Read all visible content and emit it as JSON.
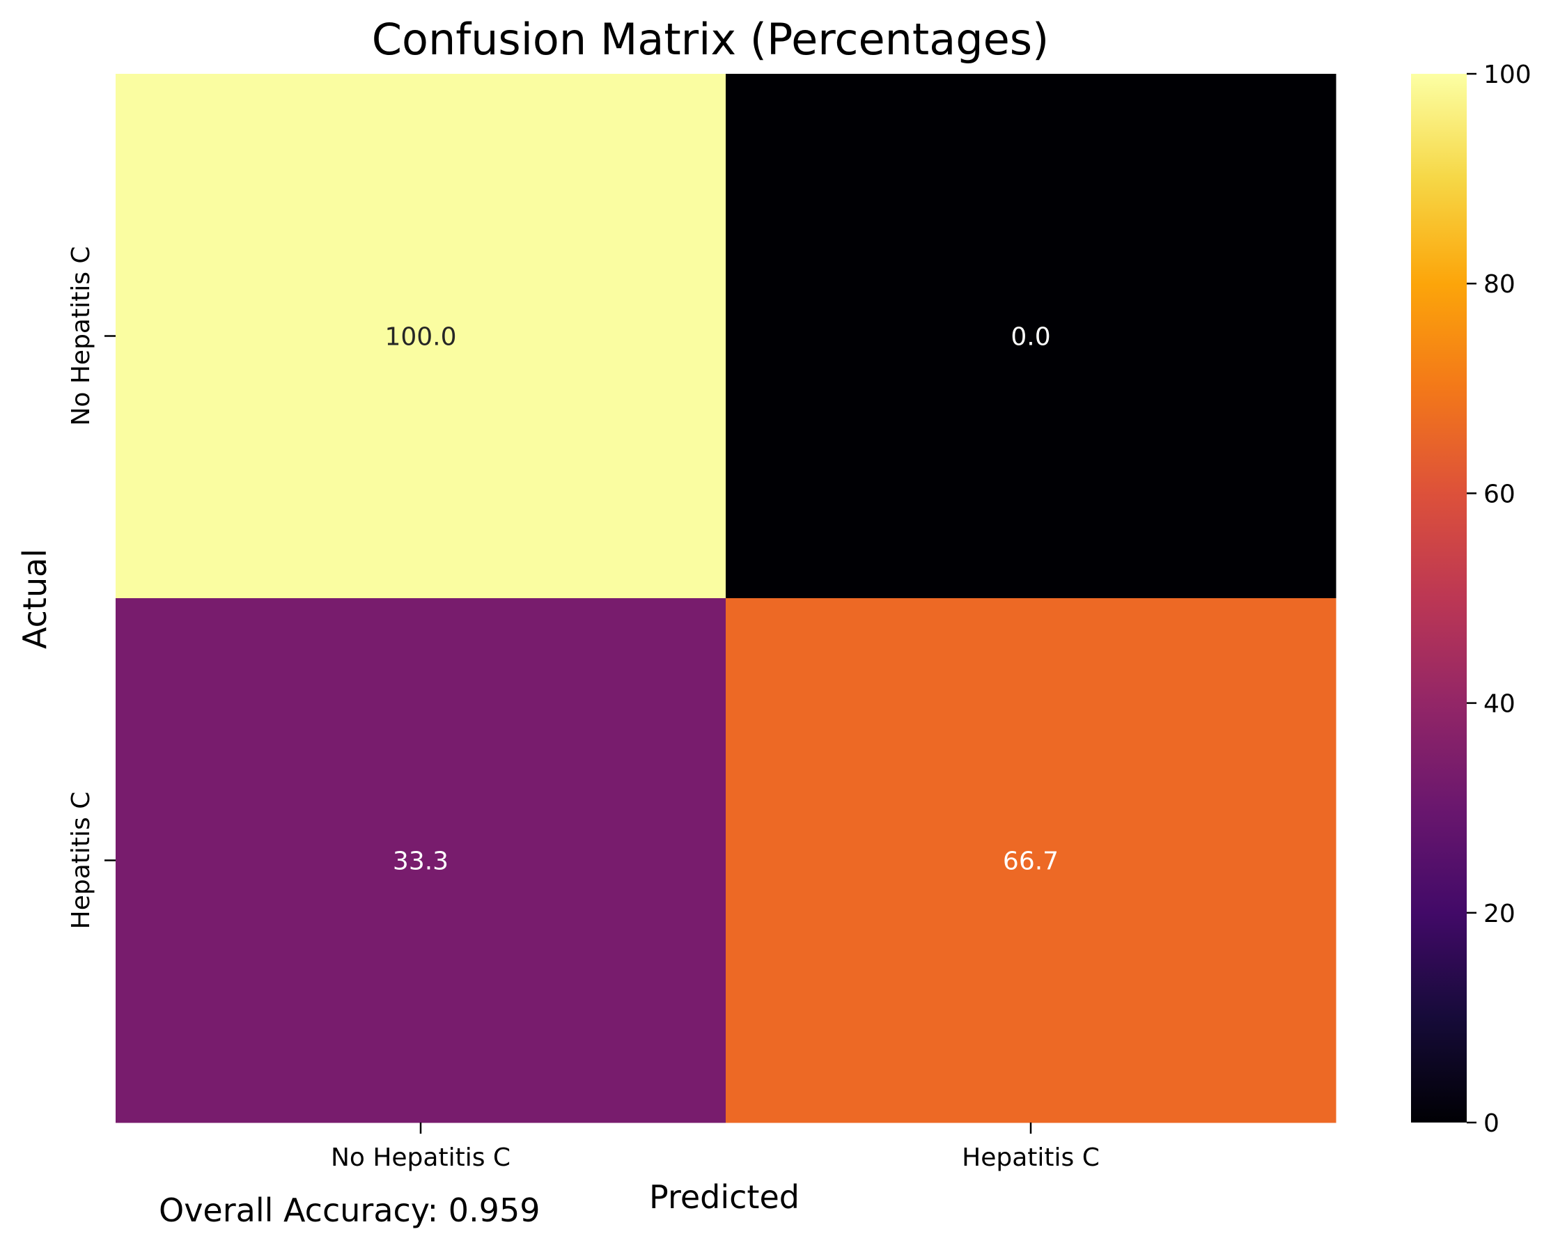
{
  "chart_data": {
    "type": "heatmap",
    "title": "Confusion Matrix (Percentages)",
    "xlabel": "Predicted",
    "ylabel": "Actual",
    "x_categories": [
      "No Hepatitis C",
      "Hepatitis C"
    ],
    "y_categories": [
      "No Hepatitis C",
      "Hepatitis C"
    ],
    "values": [
      [
        100.0,
        0.0
      ],
      [
        33.3,
        66.7
      ]
    ],
    "cell_labels": [
      [
        "100.0",
        "0.0"
      ],
      [
        "33.3",
        "66.7"
      ]
    ],
    "colormap": "inferno",
    "cell_colors": [
      [
        "#fafda1",
        "#000004"
      ],
      [
        "#781c6d",
        "#ed6925"
      ]
    ],
    "cell_text_colors": [
      [
        "#262626",
        "#ffffff"
      ],
      [
        "#ffffff",
        "#ffffff"
      ]
    ],
    "colorbar": {
      "range": [
        0,
        100
      ],
      "ticks": [
        "0",
        "20",
        "40",
        "60",
        "80",
        "100"
      ]
    },
    "annotation": "Overall Accuracy: 0.959"
  }
}
